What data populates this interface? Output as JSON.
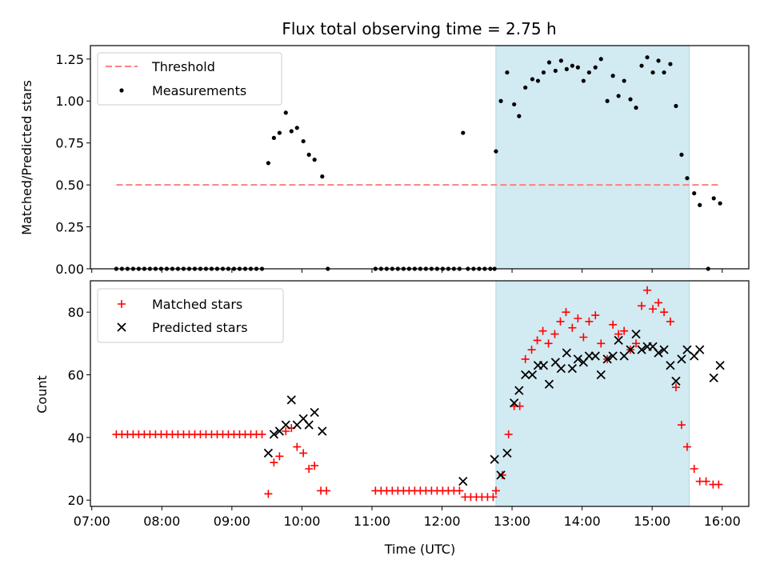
{
  "chart_data": {
    "title": "Flux total observing time = 2.75 h",
    "xlabel": "Time (UTC)",
    "xticks": [
      "07:00",
      "08:00",
      "09:00",
      "10:00",
      "11:00",
      "12:00",
      "13:00",
      "14:00",
      "15:00",
      "16:00"
    ],
    "xlim": [
      6.98,
      16.38
    ],
    "highlight": {
      "start": 12.77,
      "end": 15.53,
      "color": "#add8e6"
    },
    "top": {
      "type": "scatter",
      "ylabel": "Matched/Predicted stars",
      "ylim": [
        0,
        1.33
      ],
      "yticks": [
        "0.00",
        "0.25",
        "0.50",
        "0.75",
        "1.00",
        "1.25"
      ],
      "ytick_values": [
        0,
        0.25,
        0.5,
        0.75,
        1.0,
        1.25
      ],
      "legend": [
        "Threshold",
        "Measurements"
      ],
      "threshold": {
        "value": 0.5,
        "x": [
          7.35,
          15.95
        ],
        "color": "#ff7f7f"
      },
      "measurements": [
        [
          7.35,
          0
        ],
        [
          7.43,
          0
        ],
        [
          7.51,
          0
        ],
        [
          7.59,
          0
        ],
        [
          7.67,
          0
        ],
        [
          7.75,
          0
        ],
        [
          7.83,
          0
        ],
        [
          7.91,
          0
        ],
        [
          7.99,
          0
        ],
        [
          8.07,
          0
        ],
        [
          8.15,
          0
        ],
        [
          8.23,
          0
        ],
        [
          8.31,
          0
        ],
        [
          8.39,
          0
        ],
        [
          8.47,
          0
        ],
        [
          8.55,
          0
        ],
        [
          8.63,
          0
        ],
        [
          8.71,
          0
        ],
        [
          8.79,
          0
        ],
        [
          8.87,
          0
        ],
        [
          8.95,
          0
        ],
        [
          9.03,
          0
        ],
        [
          9.11,
          0
        ],
        [
          9.19,
          0
        ],
        [
          9.27,
          0
        ],
        [
          9.35,
          0
        ],
        [
          9.43,
          0
        ],
        [
          9.52,
          0.63
        ],
        [
          9.6,
          0.78
        ],
        [
          9.68,
          0.81
        ],
        [
          9.77,
          0.93
        ],
        [
          9.85,
          0.82
        ],
        [
          9.93,
          0.84
        ],
        [
          10.02,
          0.76
        ],
        [
          10.1,
          0.68
        ],
        [
          10.18,
          0.65
        ],
        [
          10.29,
          0.55
        ],
        [
          10.37,
          0
        ],
        [
          11.05,
          0
        ],
        [
          11.13,
          0
        ],
        [
          11.21,
          0
        ],
        [
          11.29,
          0
        ],
        [
          11.37,
          0
        ],
        [
          11.45,
          0
        ],
        [
          11.53,
          0
        ],
        [
          11.61,
          0
        ],
        [
          11.69,
          0
        ],
        [
          11.77,
          0
        ],
        [
          11.85,
          0
        ],
        [
          11.93,
          0
        ],
        [
          12.01,
          0
        ],
        [
          12.09,
          0
        ],
        [
          12.17,
          0
        ],
        [
          12.25,
          0
        ],
        [
          12.3,
          0.81
        ],
        [
          12.37,
          0
        ],
        [
          12.45,
          0
        ],
        [
          12.53,
          0
        ],
        [
          12.61,
          0
        ],
        [
          12.69,
          0
        ],
        [
          12.75,
          0
        ],
        [
          12.77,
          0.7
        ],
        [
          12.84,
          1.0
        ],
        [
          12.93,
          1.17
        ],
        [
          13.03,
          0.98
        ],
        [
          13.1,
          0.91
        ],
        [
          13.19,
          1.08
        ],
        [
          13.29,
          1.13
        ],
        [
          13.37,
          1.12
        ],
        [
          13.45,
          1.17
        ],
        [
          13.53,
          1.23
        ],
        [
          13.62,
          1.18
        ],
        [
          13.7,
          1.24
        ],
        [
          13.78,
          1.19
        ],
        [
          13.86,
          1.21
        ],
        [
          13.94,
          1.2
        ],
        [
          14.02,
          1.12
        ],
        [
          14.1,
          1.17
        ],
        [
          14.19,
          1.2
        ],
        [
          14.27,
          1.25
        ],
        [
          14.36,
          1.0
        ],
        [
          14.44,
          1.15
        ],
        [
          14.52,
          1.03
        ],
        [
          14.6,
          1.12
        ],
        [
          14.69,
          1.01
        ],
        [
          14.77,
          0.96
        ],
        [
          14.85,
          1.21
        ],
        [
          14.93,
          1.26
        ],
        [
          15.01,
          1.17
        ],
        [
          15.09,
          1.24
        ],
        [
          15.17,
          1.17
        ],
        [
          15.26,
          1.22
        ],
        [
          15.34,
          0.97
        ],
        [
          15.42,
          0.68
        ],
        [
          15.5,
          0.54
        ],
        [
          15.6,
          0.45
        ],
        [
          15.68,
          0.38
        ],
        [
          15.8,
          0
        ],
        [
          15.88,
          0.42
        ],
        [
          15.97,
          0.39
        ]
      ]
    },
    "bottom": {
      "type": "scatter",
      "ylabel": "Count",
      "ylim": [
        18,
        90
      ],
      "yticks": [
        "20",
        "40",
        "60",
        "80"
      ],
      "ytick_values": [
        20,
        40,
        60,
        80
      ],
      "legend": [
        "Matched stars",
        "Predicted stars"
      ],
      "matched_color": "#ff0000",
      "predicted_color": "#000000",
      "matched": [
        [
          7.35,
          41
        ],
        [
          7.43,
          41
        ],
        [
          7.51,
          41
        ],
        [
          7.59,
          41
        ],
        [
          7.67,
          41
        ],
        [
          7.75,
          41
        ],
        [
          7.83,
          41
        ],
        [
          7.91,
          41
        ],
        [
          7.99,
          41
        ],
        [
          8.07,
          41
        ],
        [
          8.15,
          41
        ],
        [
          8.23,
          41
        ],
        [
          8.31,
          41
        ],
        [
          8.39,
          41
        ],
        [
          8.47,
          41
        ],
        [
          8.55,
          41
        ],
        [
          8.63,
          41
        ],
        [
          8.71,
          41
        ],
        [
          8.79,
          41
        ],
        [
          8.87,
          41
        ],
        [
          8.95,
          41
        ],
        [
          9.03,
          41
        ],
        [
          9.11,
          41
        ],
        [
          9.19,
          41
        ],
        [
          9.27,
          41
        ],
        [
          9.35,
          41
        ],
        [
          9.43,
          41
        ],
        [
          9.52,
          22
        ],
        [
          9.6,
          32
        ],
        [
          9.68,
          34
        ],
        [
          9.77,
          42
        ],
        [
          9.85,
          43
        ],
        [
          9.93,
          37
        ],
        [
          10.02,
          35
        ],
        [
          10.1,
          30
        ],
        [
          10.18,
          31
        ],
        [
          10.27,
          23
        ],
        [
          10.35,
          23
        ],
        [
          11.05,
          23
        ],
        [
          11.13,
          23
        ],
        [
          11.21,
          23
        ],
        [
          11.29,
          23
        ],
        [
          11.37,
          23
        ],
        [
          11.45,
          23
        ],
        [
          11.53,
          23
        ],
        [
          11.61,
          23
        ],
        [
          11.69,
          23
        ],
        [
          11.77,
          23
        ],
        [
          11.85,
          23
        ],
        [
          11.93,
          23
        ],
        [
          12.01,
          23
        ],
        [
          12.09,
          23
        ],
        [
          12.17,
          23
        ],
        [
          12.25,
          23
        ],
        [
          12.33,
          21
        ],
        [
          12.41,
          21
        ],
        [
          12.49,
          21
        ],
        [
          12.57,
          21
        ],
        [
          12.65,
          21
        ],
        [
          12.73,
          21
        ],
        [
          12.77,
          23
        ],
        [
          12.86,
          28
        ],
        [
          12.95,
          41
        ],
        [
          13.03,
          50
        ],
        [
          13.11,
          50
        ],
        [
          13.19,
          65
        ],
        [
          13.28,
          68
        ],
        [
          13.36,
          71
        ],
        [
          13.44,
          74
        ],
        [
          13.52,
          70
        ],
        [
          13.61,
          73
        ],
        [
          13.69,
          77
        ],
        [
          13.77,
          80
        ],
        [
          13.86,
          75
        ],
        [
          13.94,
          78
        ],
        [
          14.02,
          72
        ],
        [
          14.1,
          77
        ],
        [
          14.19,
          79
        ],
        [
          14.27,
          70
        ],
        [
          14.36,
          65
        ],
        [
          14.44,
          76
        ],
        [
          14.52,
          73
        ],
        [
          14.6,
          74
        ],
        [
          14.69,
          68
        ],
        [
          14.77,
          70
        ],
        [
          14.85,
          82
        ],
        [
          14.93,
          87
        ],
        [
          15.01,
          81
        ],
        [
          15.09,
          83
        ],
        [
          15.17,
          80
        ],
        [
          15.26,
          77
        ],
        [
          15.34,
          56
        ],
        [
          15.42,
          44
        ],
        [
          15.5,
          37
        ],
        [
          15.6,
          30
        ],
        [
          15.68,
          26
        ],
        [
          15.77,
          26
        ],
        [
          15.87,
          25
        ],
        [
          15.95,
          25
        ]
      ],
      "predicted": [
        [
          9.52,
          35
        ],
        [
          9.6,
          41
        ],
        [
          9.68,
          42
        ],
        [
          9.77,
          44
        ],
        [
          9.85,
          52
        ],
        [
          9.93,
          44
        ],
        [
          10.02,
          46
        ],
        [
          10.1,
          44
        ],
        [
          10.18,
          48
        ],
        [
          10.29,
          42
        ],
        [
          12.3,
          26
        ],
        [
          12.75,
          33
        ],
        [
          12.84,
          28
        ],
        [
          12.93,
          35
        ],
        [
          13.03,
          51
        ],
        [
          13.1,
          55
        ],
        [
          13.19,
          60
        ],
        [
          13.29,
          60
        ],
        [
          13.37,
          63
        ],
        [
          13.45,
          63
        ],
        [
          13.53,
          57
        ],
        [
          13.62,
          64
        ],
        [
          13.7,
          62
        ],
        [
          13.78,
          67
        ],
        [
          13.86,
          62
        ],
        [
          13.94,
          65
        ],
        [
          14.02,
          64
        ],
        [
          14.1,
          66
        ],
        [
          14.19,
          66
        ],
        [
          14.27,
          60
        ],
        [
          14.36,
          65
        ],
        [
          14.44,
          66
        ],
        [
          14.52,
          71
        ],
        [
          14.6,
          66
        ],
        [
          14.69,
          68
        ],
        [
          14.77,
          73
        ],
        [
          14.85,
          68
        ],
        [
          14.93,
          69
        ],
        [
          15.01,
          69
        ],
        [
          15.09,
          67
        ],
        [
          15.17,
          68
        ],
        [
          15.26,
          63
        ],
        [
          15.34,
          58
        ],
        [
          15.42,
          65
        ],
        [
          15.5,
          68
        ],
        [
          15.6,
          66
        ],
        [
          15.68,
          68
        ],
        [
          15.88,
          59
        ],
        [
          15.97,
          63
        ]
      ]
    }
  }
}
